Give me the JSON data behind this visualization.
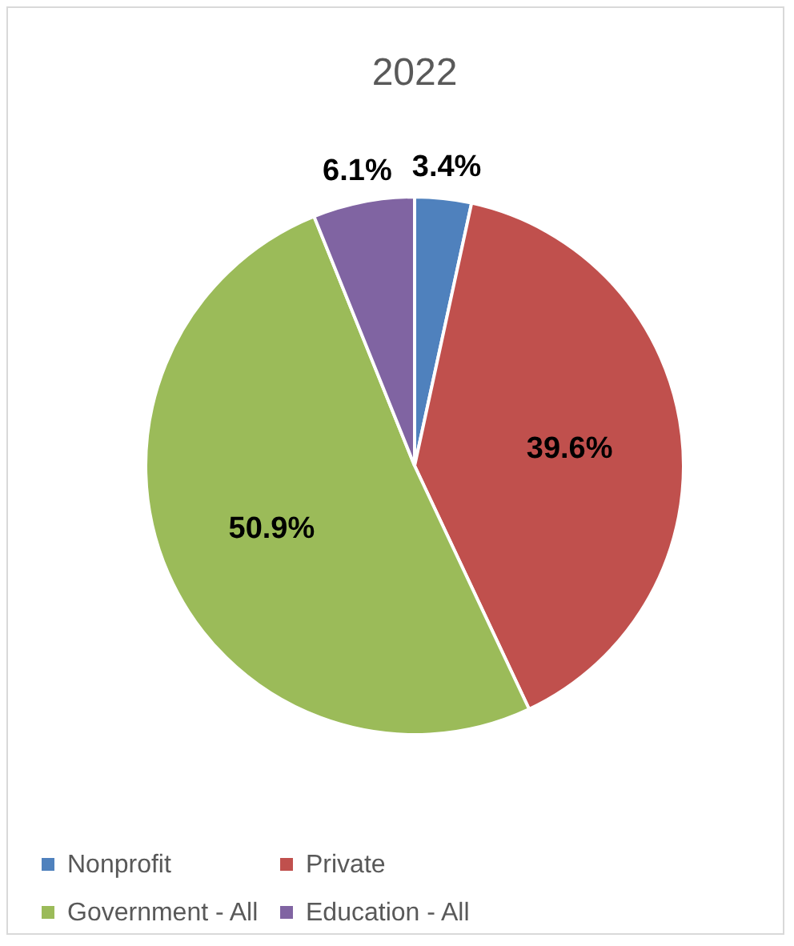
{
  "chart_data": {
    "type": "pie",
    "title": "2022",
    "categories": [
      "Nonprofit",
      "Private",
      "Government - All",
      "Education - All"
    ],
    "values": [
      3.4,
      39.6,
      50.9,
      6.1
    ],
    "colors": [
      "#4f81bd",
      "#c0504d",
      "#9bbb59",
      "#8064a2"
    ],
    "value_labels": [
      "3.4%",
      "39.6%",
      "50.9%",
      "6.1%"
    ],
    "legend": "bottom"
  }
}
